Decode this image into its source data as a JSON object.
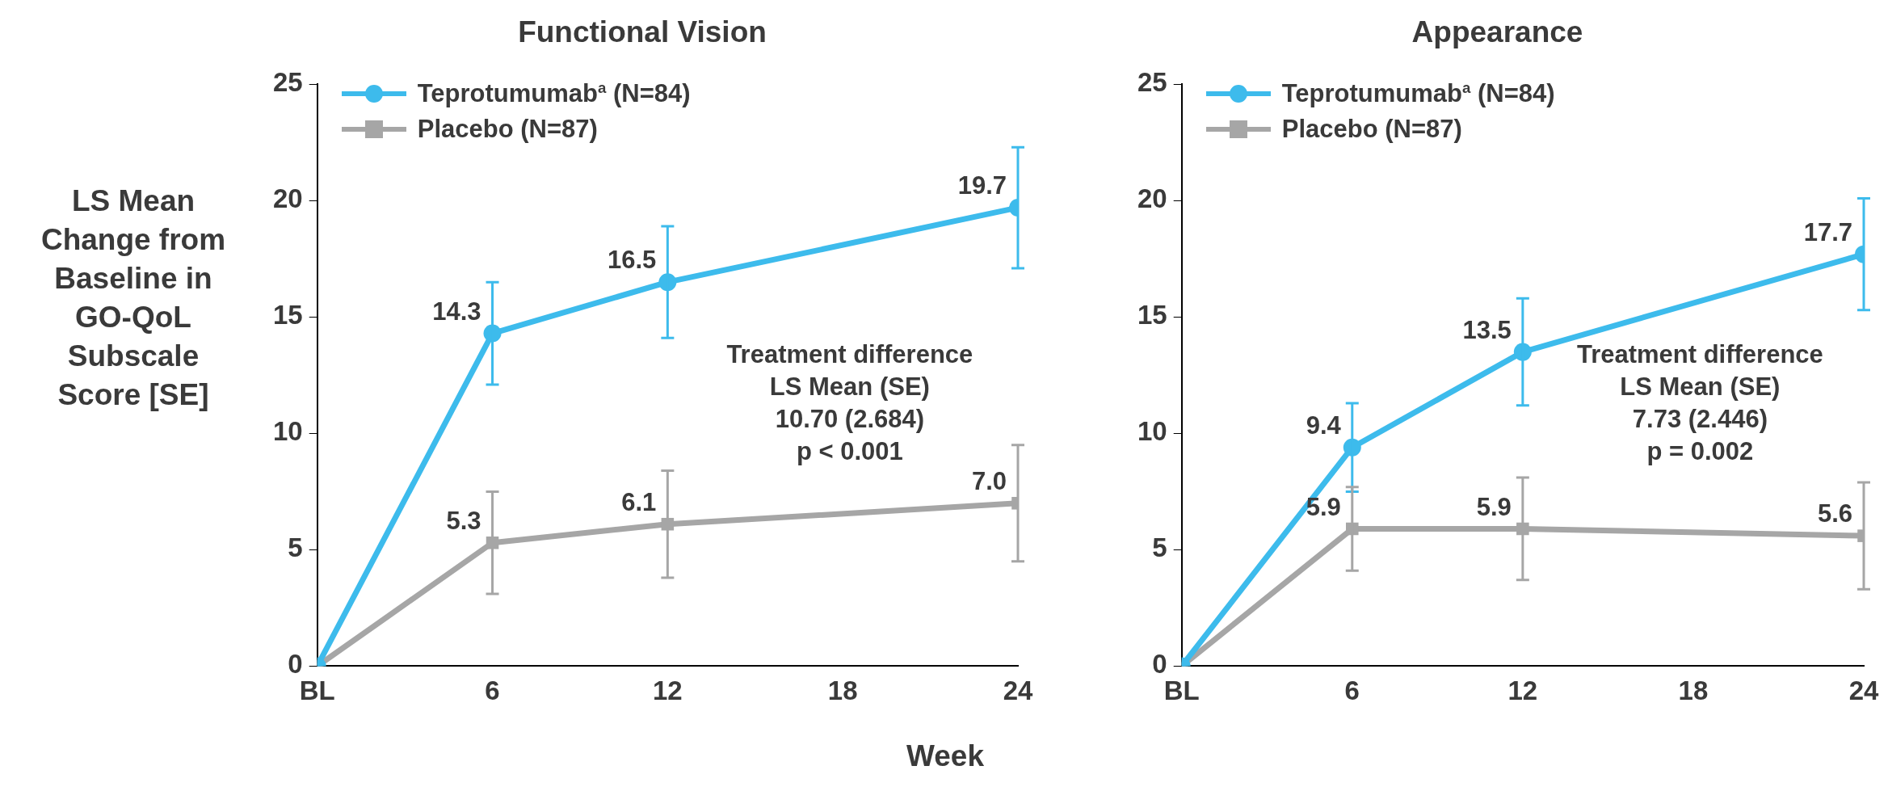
{
  "chart_data": [
    {
      "type": "line",
      "title": "Functional Vision",
      "ylabel": "LS Mean Change from Baseline in GO-QoL Subscale Score [SE]",
      "x": [
        0,
        6,
        12,
        24
      ],
      "xlim": [
        0,
        24
      ],
      "xticks": [
        {
          "value": 0,
          "label": "BL"
        },
        6,
        12,
        18,
        24
      ],
      "ylim": [
        0,
        25
      ],
      "yticks": [
        0,
        5,
        10,
        15,
        20,
        25
      ],
      "grid": false,
      "legend": "top left",
      "line_style": "solid",
      "series": [
        {
          "name": "Teprotumumab$^{a}$ (N=84)",
          "color": "#3dbbec",
          "marker": "circle",
          "values": [
            0,
            14.3,
            16.5,
            19.7
          ],
          "errors": [
            null,
            2.2,
            2.4,
            2.6
          ],
          "value_labels": [
            null,
            "14.3",
            "16.5",
            "19.7"
          ]
        },
        {
          "name": "Placebo (N=87)",
          "color": "#a6a6a6",
          "marker": "square",
          "values": [
            0,
            5.3,
            6.1,
            7.0
          ],
          "errors": [
            null,
            2.2,
            2.3,
            2.5
          ],
          "value_labels": [
            null,
            "5.3",
            "6.1",
            "7.0"
          ]
        }
      ],
      "annotations": [
        "Treatment difference\nLS Mean (SE)\n10.70 (2.684)\np < 0.001"
      ]
    },
    {
      "type": "line",
      "title": "Appearance",
      "xlabel": "Week",
      "x": [
        0,
        6,
        12,
        24
      ],
      "xlim": [
        0,
        24
      ],
      "xticks": [
        {
          "value": 0,
          "label": "BL"
        },
        6,
        12,
        18,
        24
      ],
      "ylim": [
        0,
        25
      ],
      "yticks": [
        0,
        5,
        10,
        15,
        20,
        25
      ],
      "grid": false,
      "legend": "top left",
      "line_style": "solid",
      "series": [
        {
          "name": "Teprotumumab$^{a}$ (N=84)",
          "color": "#3dbbec",
          "marker": "circle",
          "values": [
            0,
            9.4,
            13.5,
            17.7
          ],
          "errors": [
            null,
            1.9,
            2.3,
            2.4
          ],
          "value_labels": [
            null,
            "9.4",
            "13.5",
            "17.7"
          ]
        },
        {
          "name": "Placebo (N=87)",
          "color": "#a6a6a6",
          "marker": "square",
          "values": [
            0,
            5.9,
            5.9,
            5.6
          ],
          "errors": [
            null,
            1.8,
            2.2,
            2.3
          ],
          "value_labels": [
            null,
            "5.9",
            "5.9",
            "5.6"
          ]
        }
      ],
      "annotations": [
        "Treatment difference\nLS Mean (SE)\n7.73 (2.446)\np = 0.002"
      ]
    }
  ]
}
